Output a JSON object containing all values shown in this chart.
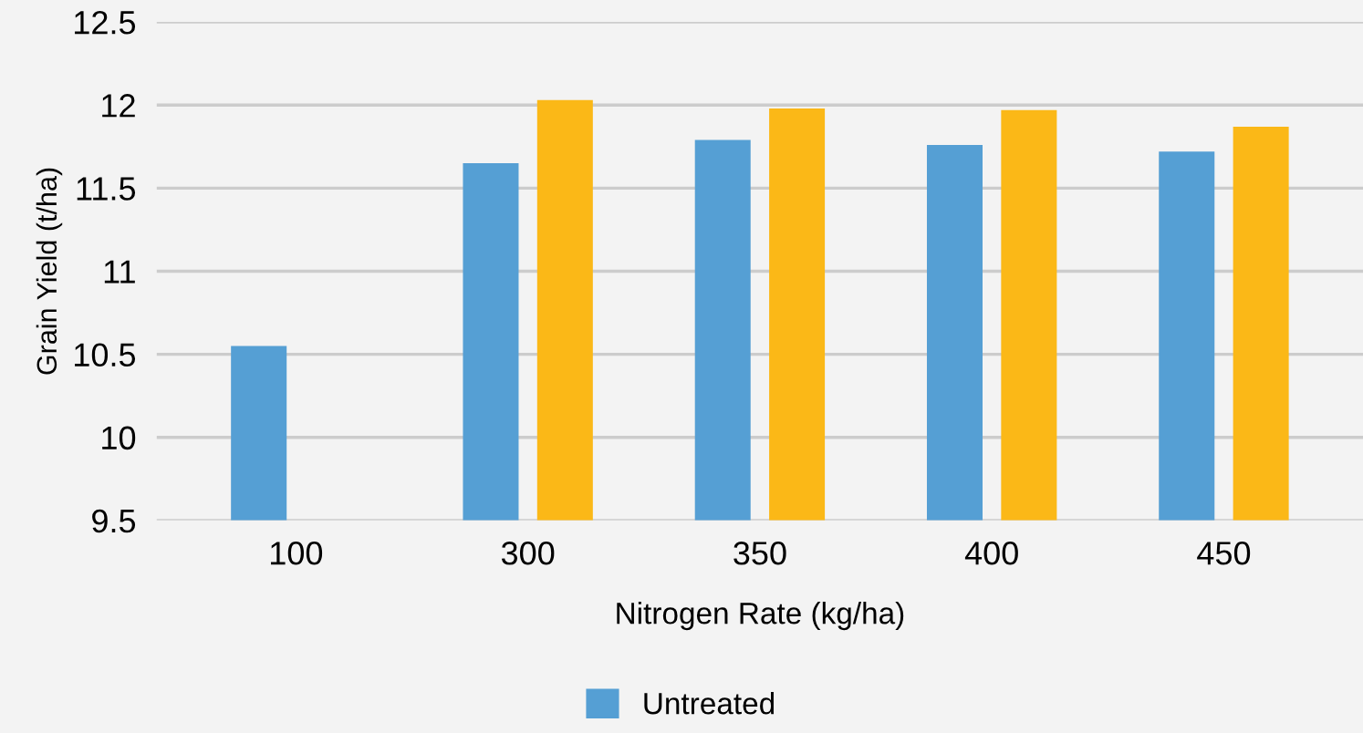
{
  "chart_data": {
    "type": "bar",
    "xlabel": "Nitrogen Rate (kg/ha)",
    "ylabel": "Grain Yield (t/ha)",
    "categories": [
      "100",
      "300",
      "350",
      "400",
      "450"
    ],
    "series": [
      {
        "name": "Untreated",
        "color": "#559fd4",
        "values": [
          10.55,
          11.65,
          11.79,
          11.76,
          11.72
        ]
      },
      {
        "color": "#fbb817",
        "values": [
          null,
          12.03,
          11.98,
          11.97,
          11.87
        ]
      }
    ],
    "ylim": [
      9.5,
      12.5
    ],
    "yticks": [
      9.5,
      10,
      10.5,
      11,
      11.5,
      12,
      12.5
    ],
    "grid": "y",
    "legend": "bottom"
  }
}
